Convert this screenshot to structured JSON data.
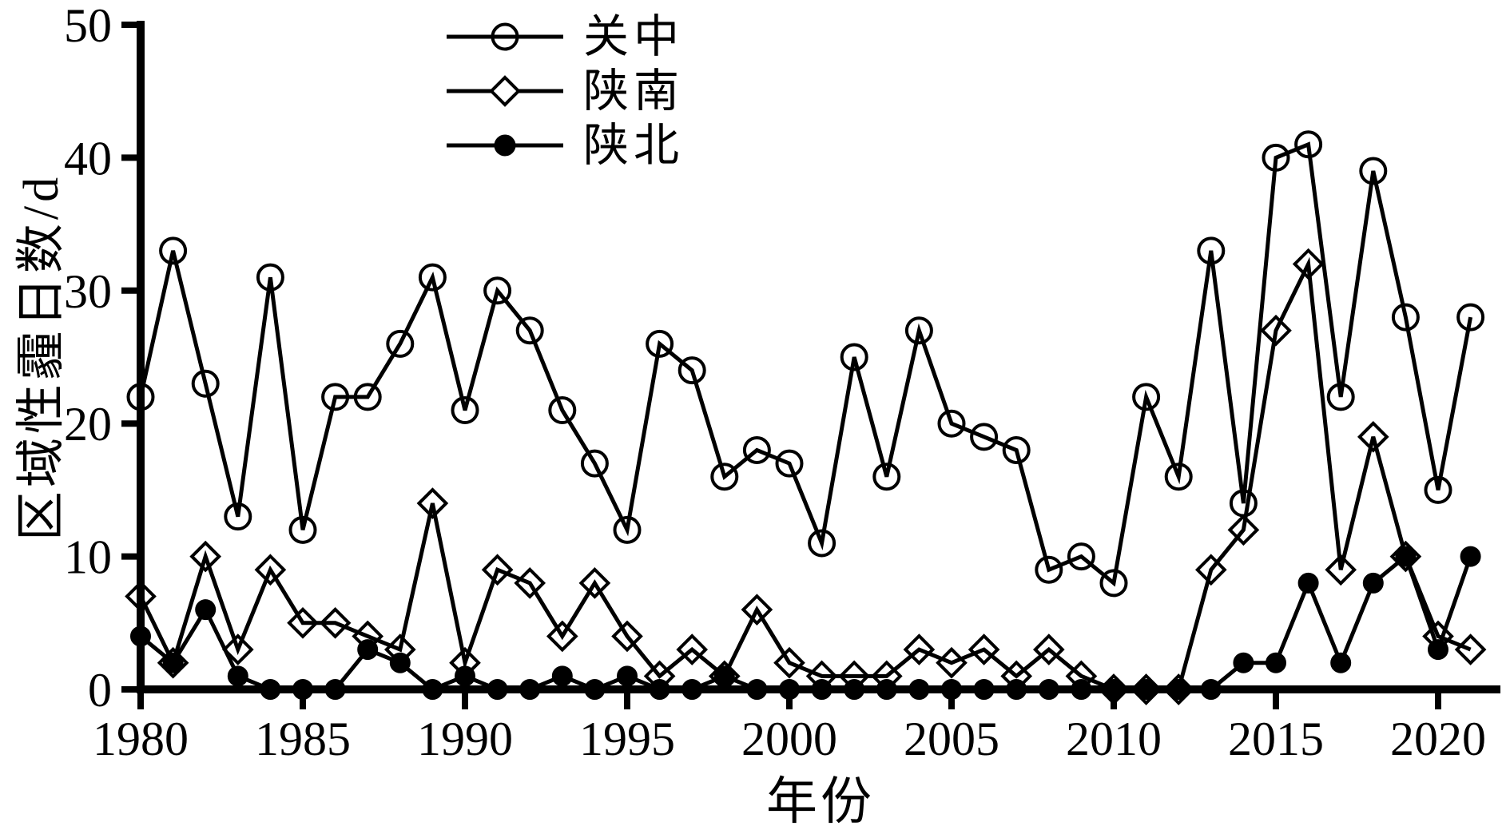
{
  "figure": {
    "background_color": "#ffffff",
    "ink_color": "#000000"
  },
  "chart_data": {
    "type": "line",
    "title": "",
    "xlabel": "年份",
    "ylabel": "区域性霾日数/d",
    "ylim": [
      0,
      50
    ],
    "xlim": [
      1980,
      2021
    ],
    "grid": false,
    "legend_position": "top-inside-left",
    "x_ticks": [
      1980,
      1985,
      1990,
      1995,
      2000,
      2005,
      2010,
      2015,
      2020
    ],
    "y_ticks": [
      0,
      10,
      20,
      30,
      40,
      50
    ],
    "x": [
      1980,
      1981,
      1982,
      1983,
      1984,
      1985,
      1986,
      1987,
      1988,
      1989,
      1990,
      1991,
      1992,
      1993,
      1994,
      1995,
      1996,
      1997,
      1998,
      1999,
      2000,
      2001,
      2002,
      2003,
      2004,
      2005,
      2006,
      2007,
      2008,
      2009,
      2010,
      2011,
      2012,
      2013,
      2014,
      2015,
      2016,
      2017,
      2018,
      2019,
      2020,
      2021
    ],
    "series": [
      {
        "name": "关中",
        "marker": "circle-open",
        "line_color": "#000000",
        "values": [
          22,
          33,
          23,
          13,
          31,
          12,
          22,
          22,
          26,
          31,
          21,
          30,
          27,
          21,
          17,
          12,
          26,
          24,
          16,
          18,
          17,
          11,
          25,
          16,
          27,
          20,
          19,
          18,
          9,
          10,
          8,
          22,
          16,
          33,
          14,
          40,
          41,
          22,
          39,
          28,
          15,
          28
        ]
      },
      {
        "name": "陕南",
        "marker": "diamond-open",
        "line_color": "#000000",
        "values": [
          7,
          2,
          10,
          3,
          9,
          5,
          5,
          4,
          3,
          14,
          2,
          9,
          8,
          4,
          8,
          4,
          1,
          3,
          1,
          6,
          2,
          1,
          1,
          1,
          3,
          2,
          3,
          1,
          3,
          1,
          0,
          0,
          0,
          9,
          12,
          27,
          32,
          9,
          19,
          10,
          4,
          3
        ]
      },
      {
        "name": "陕北",
        "marker": "circle-filled",
        "line_color": "#000000",
        "values": [
          4,
          2,
          6,
          1,
          0,
          0,
          0,
          3,
          2,
          0,
          1,
          0,
          0,
          1,
          0,
          1,
          0,
          0,
          1,
          0,
          0,
          0,
          0,
          0,
          0,
          0,
          0,
          0,
          0,
          0,
          0,
          0,
          0,
          0,
          2,
          2,
          8,
          2,
          8,
          10,
          3,
          10
        ]
      }
    ]
  }
}
